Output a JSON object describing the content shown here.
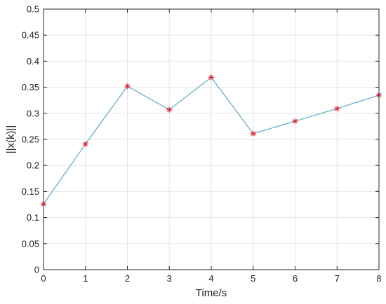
{
  "chart_data": {
    "type": "line",
    "xlabel": "Time/s",
    "ylabel": "||x(k)||",
    "xlim": [
      0,
      8
    ],
    "ylim": [
      0,
      0.5
    ],
    "x_ticks": [
      "0",
      "1",
      "2",
      "3",
      "4",
      "5",
      "6",
      "7",
      "8"
    ],
    "y_ticks": [
      "0",
      "0.05",
      "0.1",
      "0.15",
      "0.2",
      "0.25",
      "0.3",
      "0.35",
      "0.4",
      "0.45",
      "0.5"
    ],
    "grid": true,
    "series": [
      {
        "x": [
          0,
          1,
          2,
          3,
          4,
          5,
          6,
          7,
          8
        ],
        "values": [
          0.126,
          0.241,
          0.352,
          0.307,
          0.369,
          0.261,
          0.285,
          0.309,
          0.335
        ],
        "line_color": "#5ea7c4",
        "marker": "asterisk",
        "marker_color": "#e8243a"
      }
    ]
  }
}
